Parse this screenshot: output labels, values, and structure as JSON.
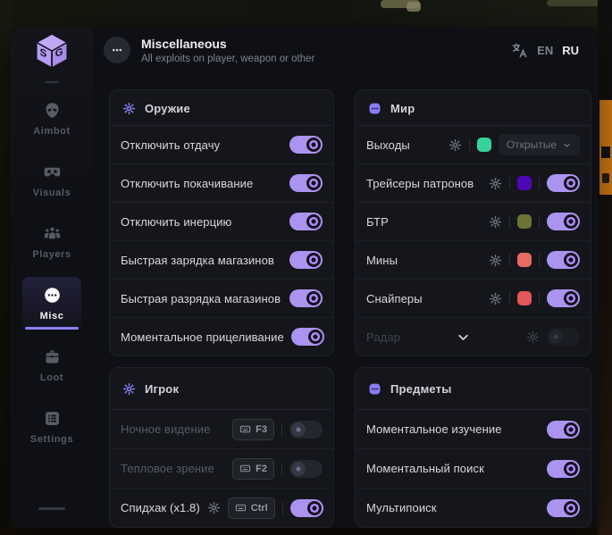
{
  "header": {
    "title": "Miscellaneous",
    "subtitle": "All exploits on player, weapon or other",
    "lang_en": "EN",
    "lang_ru": "RU"
  },
  "sidebar": {
    "items": [
      {
        "id": "aimbot",
        "label": "Aimbot",
        "icon": "alien-icon",
        "active": false
      },
      {
        "id": "visuals",
        "label": "Visuals",
        "icon": "vr-goggles-icon",
        "active": false
      },
      {
        "id": "players",
        "label": "Players",
        "icon": "people-group-icon",
        "active": false
      },
      {
        "id": "misc",
        "label": "Misc",
        "icon": "ellipsis-circle-icon",
        "active": true
      },
      {
        "id": "loot",
        "label": "Loot",
        "icon": "briefcase-icon",
        "active": false
      },
      {
        "id": "settings",
        "label": "Settings",
        "icon": "settings-list-icon",
        "active": false
      }
    ]
  },
  "sections": [
    {
      "id": "weapon",
      "column": "left",
      "variant": "top",
      "title": "Оружие",
      "icon": "gear-icon",
      "rows": [
        {
          "label": "Отключить отдачу",
          "controls": [
            {
              "type": "toggle",
              "state": "on"
            }
          ]
        },
        {
          "label": "Отключить покачивание",
          "controls": [
            {
              "type": "toggle",
              "state": "on"
            }
          ]
        },
        {
          "label": "Отключить инерцию",
          "controls": [
            {
              "type": "toggle",
              "state": "on"
            }
          ]
        },
        {
          "label": "Быстрая зарядка магазинов",
          "controls": [
            {
              "type": "toggle",
              "state": "on"
            }
          ]
        },
        {
          "label": "Быстрая разрядка магазинов",
          "controls": [
            {
              "type": "toggle",
              "state": "on"
            }
          ]
        },
        {
          "label": "Моментальное прицеливание",
          "controls": [
            {
              "type": "toggle",
              "state": "on"
            }
          ]
        }
      ]
    },
    {
      "id": "world",
      "column": "right",
      "variant": "top",
      "title": "Мир",
      "icon": "bubble-dots-icon",
      "rows": [
        {
          "label": "Выходы",
          "controls": [
            {
              "type": "gear"
            },
            {
              "type": "divider"
            },
            {
              "type": "swatch",
              "color": "#36d39c"
            },
            {
              "type": "dropdown",
              "value": "Открытые"
            }
          ]
        },
        {
          "label": "Трейсеры патронов",
          "controls": [
            {
              "type": "gear"
            },
            {
              "type": "divider"
            },
            {
              "type": "swatch",
              "color": "#4e07b4"
            },
            {
              "type": "divider"
            },
            {
              "type": "toggle",
              "state": "on"
            }
          ]
        },
        {
          "label": "БТР",
          "controls": [
            {
              "type": "gear"
            },
            {
              "type": "divider"
            },
            {
              "type": "swatch",
              "color": "#6d7434"
            },
            {
              "type": "divider"
            },
            {
              "type": "toggle",
              "state": "on"
            }
          ]
        },
        {
          "label": "Мины",
          "controls": [
            {
              "type": "gear"
            },
            {
              "type": "divider"
            },
            {
              "type": "swatch",
              "color": "#e96a63"
            },
            {
              "type": "divider"
            },
            {
              "type": "toggle",
              "state": "on"
            }
          ]
        },
        {
          "label": "Снайперы",
          "controls": [
            {
              "type": "gear"
            },
            {
              "type": "divider"
            },
            {
              "type": "swatch",
              "color": "#e25757"
            },
            {
              "type": "divider"
            },
            {
              "type": "toggle",
              "state": "on"
            }
          ]
        },
        {
          "label": "Радар",
          "ghost": true,
          "center_icon": "chevron-down-icon",
          "controls_dimmed": true,
          "controls": [
            {
              "type": "gear"
            },
            {
              "type": "toggle",
              "state": "off"
            }
          ]
        }
      ]
    },
    {
      "id": "player",
      "column": "left",
      "variant": "bottom",
      "title": "Игрок",
      "icon": "gear-icon",
      "rows": [
        {
          "label": "Ночное видение",
          "dim": true,
          "controls": [
            {
              "type": "key",
              "label": "F3"
            },
            {
              "type": "divider"
            },
            {
              "type": "toggle",
              "state": "off"
            }
          ]
        },
        {
          "label": "Тепловое зрение",
          "dim": true,
          "controls": [
            {
              "type": "key",
              "label": "F2"
            },
            {
              "type": "divider"
            },
            {
              "type": "toggle",
              "state": "off"
            }
          ]
        },
        {
          "label": "Спидхак (x1.8)",
          "controls": [
            {
              "type": "gear"
            },
            {
              "type": "key",
              "label": "Ctrl"
            },
            {
              "type": "divider"
            },
            {
              "type": "toggle",
              "state": "on"
            }
          ]
        }
      ]
    },
    {
      "id": "items",
      "column": "right",
      "variant": "bottom",
      "title": "Предметы",
      "icon": "bubble-dots-icon",
      "rows": [
        {
          "label": "Моментальное изучение",
          "controls": [
            {
              "type": "toggle",
              "state": "on"
            }
          ]
        },
        {
          "label": "Моментальный поиск",
          "controls": [
            {
              "type": "toggle",
              "state": "on"
            }
          ]
        },
        {
          "label": "Мультипоиск",
          "controls": [
            {
              "type": "toggle",
              "state": "on"
            }
          ]
        }
      ]
    }
  ],
  "colors": {
    "accent": "#8d7ef5",
    "toggle_on": "#ab93f0",
    "toggle_off": "#23262e",
    "billboard": "#dd8116"
  }
}
